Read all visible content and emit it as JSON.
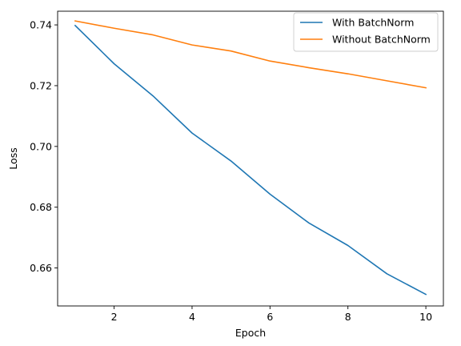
{
  "chart_data": {
    "type": "line",
    "title": "",
    "xlabel": "Epoch",
    "ylabel": "Loss",
    "x": [
      1,
      2,
      3,
      4,
      5,
      6,
      7,
      8,
      9,
      10
    ],
    "xlim": [
      0.55,
      10.45
    ],
    "ylim": [
      0.6475,
      0.7445
    ],
    "xticks": [
      2,
      4,
      6,
      8,
      10
    ],
    "xtick_labels": [
      "2",
      "4",
      "6",
      "8",
      "10"
    ],
    "yticks": [
      0.66,
      0.68,
      0.7,
      0.72,
      0.74
    ],
    "ytick_labels": [
      "0.66",
      "0.68",
      "0.70",
      "0.72",
      "0.74"
    ],
    "grid": false,
    "legend_position": "top-right",
    "series": [
      {
        "name": "With BatchNorm",
        "color": "#1f77b4",
        "values": [
          0.7398,
          0.7272,
          0.7166,
          0.7044,
          0.6952,
          0.6843,
          0.6748,
          0.6674,
          0.6581,
          0.6513
        ]
      },
      {
        "name": "Without BatchNorm",
        "color": "#ff7f0e",
        "values": [
          0.7413,
          0.7389,
          0.7367,
          0.7334,
          0.7314,
          0.7281,
          0.7259,
          0.7239,
          0.7216,
          0.7193
        ]
      }
    ]
  }
}
